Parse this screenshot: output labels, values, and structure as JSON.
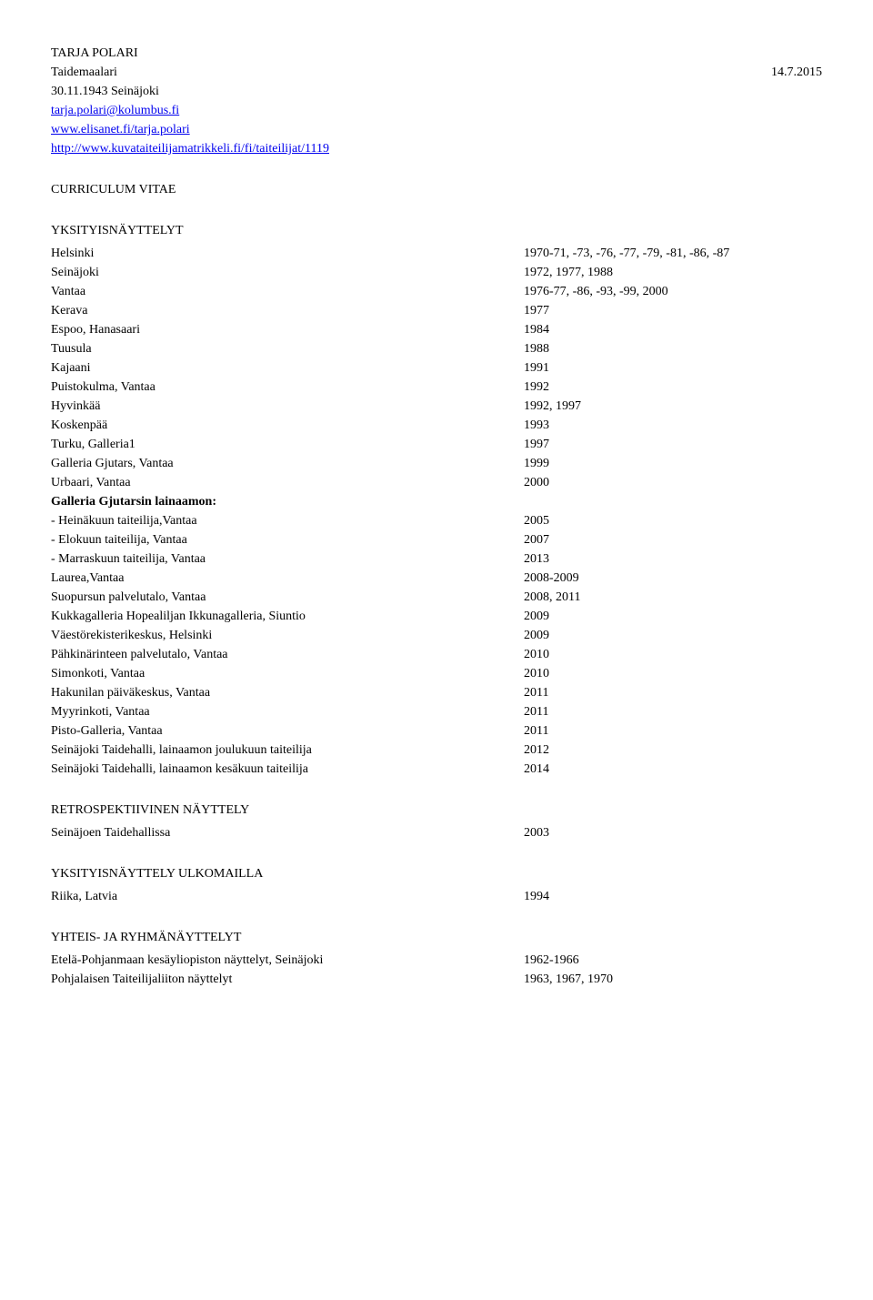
{
  "header": {
    "name": "TARJA POLARI",
    "title": "Taidemaalari",
    "date": "14.7.2015",
    "birth": "30.11.1943 Seinäjoki",
    "email": "tarja.polari@kolumbus.fi",
    "site": "www.elisanet.fi/tarja.polari",
    "url": "http://www.kuvataiteilijamatrikkeli.fi/fi/taiteilijat/1119"
  },
  "cv_heading": "CURRICULUM VITAE",
  "sections": {
    "yksityisnayttelyt": {
      "heading": "YKSITYISNÄYTTELYT",
      "rows": [
        {
          "label": "Helsinki",
          "value": "1970-71, -73, -76, -77, -79, -81, -86, -87"
        },
        {
          "label": "Seinäjoki",
          "value": "1972, 1977, 1988"
        },
        {
          "label": "Vantaa",
          "value": "1976-77, -86, -93, -99, 2000"
        },
        {
          "label": "Kerava",
          "value": "1977"
        },
        {
          "label": "Espoo, Hanasaari",
          "value": "1984"
        },
        {
          "label": "Tuusula",
          "value": "1988"
        },
        {
          "label": "Kajaani",
          "value": "1991"
        },
        {
          "label": "Puistokulma, Vantaa",
          "value": "1992"
        },
        {
          "label": "Hyvinkää",
          "value": "1992, 1997"
        },
        {
          "label": "Koskenpää",
          "value": "1993"
        },
        {
          "label": "Turku, Galleria1",
          "value": "1997"
        },
        {
          "label": "Galleria Gjutars, Vantaa",
          "value": "1999"
        },
        {
          "label": "Urbaari, Vantaa",
          "value": "2000"
        }
      ],
      "subheading": "Galleria Gjutarsin lainaamon:",
      "subrows": [
        {
          "label": "- Heinäkuun taiteilija,Vantaa",
          "value": "2005"
        },
        {
          "label": "- Elokuun taiteilija, Vantaa",
          "value": "2007"
        },
        {
          "label": "- Marraskuun taiteilija, Vantaa",
          "value": "2013"
        },
        {
          "label": "Laurea,Vantaa",
          "value": "2008-2009"
        },
        {
          "label": "Suopursun palvelutalo, Vantaa",
          "value": "2008, 2011"
        },
        {
          "label": "Kukkagalleria Hopealiljan Ikkunagalleria, Siuntio",
          "value": "2009"
        },
        {
          "label": "Väestörekisterikeskus, Helsinki",
          "value": "2009"
        },
        {
          "label": "Pähkinärinteen palvelutalo, Vantaa",
          "value": "2010"
        },
        {
          "label": "Simonkoti, Vantaa",
          "value": "2010"
        },
        {
          "label": "Hakunilan päiväkeskus, Vantaa",
          "value": "2011"
        },
        {
          "label": "Myyrinkoti, Vantaa",
          "value": "2011"
        },
        {
          "label": "Pisto-Galleria, Vantaa",
          "value": "2011"
        },
        {
          "label": "Seinäjoki Taidehalli, lainaamon joulukuun taiteilija",
          "value": "2012"
        },
        {
          "label": "Seinäjoki Taidehalli, lainaamon kesäkuun taiteilija",
          "value": "2014"
        }
      ]
    },
    "retrospektiivinen": {
      "heading": "RETROSPEKTIIVINEN NÄYTTELY",
      "rows": [
        {
          "label": "Seinäjoen Taidehallissa",
          "value": "2003"
        }
      ]
    },
    "ulkomailla": {
      "heading": "YKSITYISNÄYTTELY ULKOMAILLA",
      "rows": [
        {
          "label": "Riika, Latvia",
          "value": "1994"
        }
      ]
    },
    "yhteis": {
      "heading": "YHTEIS- JA RYHMÄNÄYTTELYT",
      "rows": [
        {
          "label": "Etelä-Pohjanmaan kesäyliopiston näyttelyt, Seinäjoki",
          "value": "1962-1966"
        },
        {
          "label": "Pohjalaisen Taiteilijaliiton näyttelyt",
          "value": "1963, 1967, 1970"
        }
      ]
    }
  }
}
